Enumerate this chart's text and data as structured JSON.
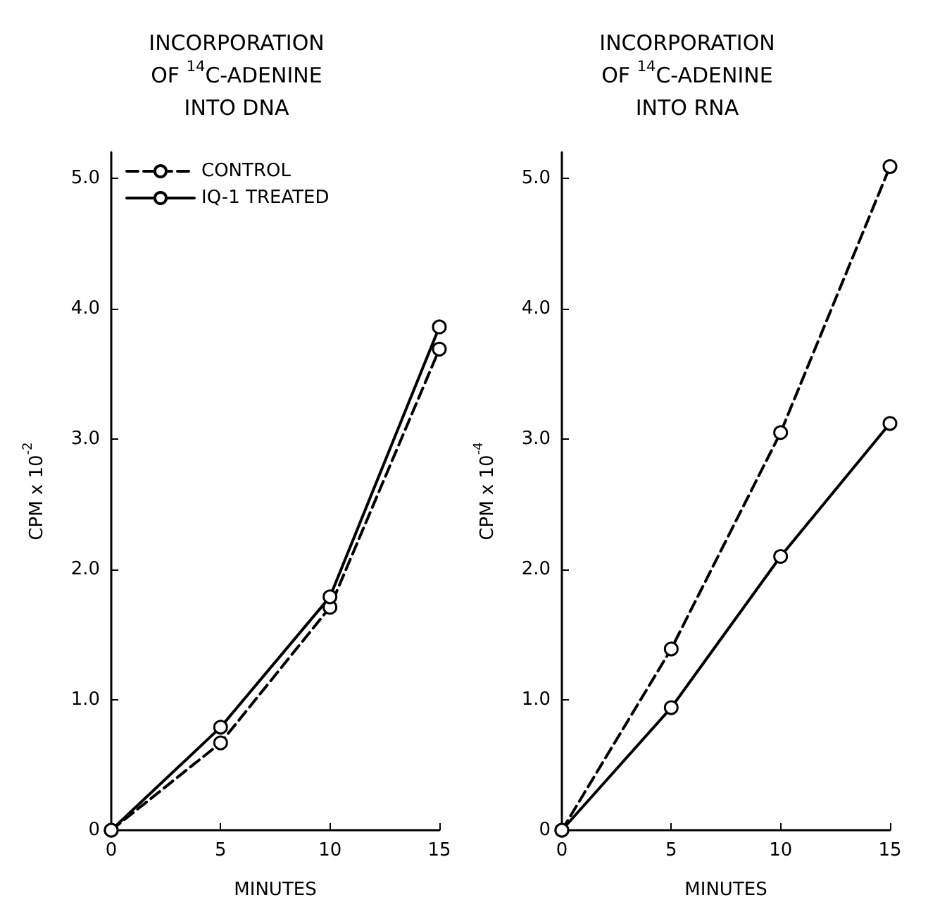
{
  "chart_data": [
    {
      "type": "line",
      "title": "INCORPORATION\nOF $^{14}$C-ADENINE\nINTO DNA",
      "xlabel": "MINUTES",
      "ylabel": "CPM x 10$^{-2}$",
      "x": [
        0,
        5,
        10,
        15
      ],
      "series": [
        {
          "name": "CONTROL",
          "color": "#000000",
          "line_style": "dashed",
          "values": [
            0,
            0.67,
            1.71,
            3.69
          ]
        },
        {
          "name": "IQ-1 TREATED",
          "color": "#000000",
          "line_style": "solid",
          "values": [
            0,
            0.79,
            1.79,
            3.86
          ]
        }
      ],
      "xlim": [
        0,
        15
      ],
      "xticks": [
        0,
        5,
        10,
        15
      ],
      "ylim": [
        0,
        5.2
      ],
      "yticks": [
        0,
        {
          "value": 1,
          "label": "1.0"
        },
        {
          "value": 2,
          "label": "2.0"
        },
        {
          "value": 3,
          "label": "3.0"
        },
        {
          "value": 4,
          "label": "4.0"
        },
        {
          "value": 5,
          "label": "5.0"
        }
      ],
      "marker": "circle",
      "grid": false,
      "legend": "top left"
    },
    {
      "type": "line",
      "title": "INCORPORATION\nOF $^{14}$C-ADENINE\nINTO RNA",
      "xlabel": "MINUTES",
      "ylabel": "CPM x 10$^{-4}$",
      "x": [
        0,
        5,
        10,
        15
      ],
      "series": [
        {
          "color": "#000000",
          "line_style": "dashed",
          "values": [
            0,
            1.39,
            3.05,
            5.09
          ]
        },
        {
          "color": "#000000",
          "line_style": "solid",
          "values": [
            0,
            0.94,
            2.1,
            3.12
          ]
        }
      ],
      "xlim": [
        0,
        15
      ],
      "xticks": [
        0,
        5,
        10,
        15
      ],
      "ylim": [
        0,
        5.2
      ],
      "yticks": [
        0,
        {
          "value": 1,
          "label": "1.0"
        },
        {
          "value": 2,
          "label": "2.0"
        },
        {
          "value": 3,
          "label": "3.0"
        },
        {
          "value": 4,
          "label": "4.0"
        },
        {
          "value": 5,
          "label": "5.0"
        }
      ],
      "marker": "circle",
      "grid": false
    }
  ]
}
